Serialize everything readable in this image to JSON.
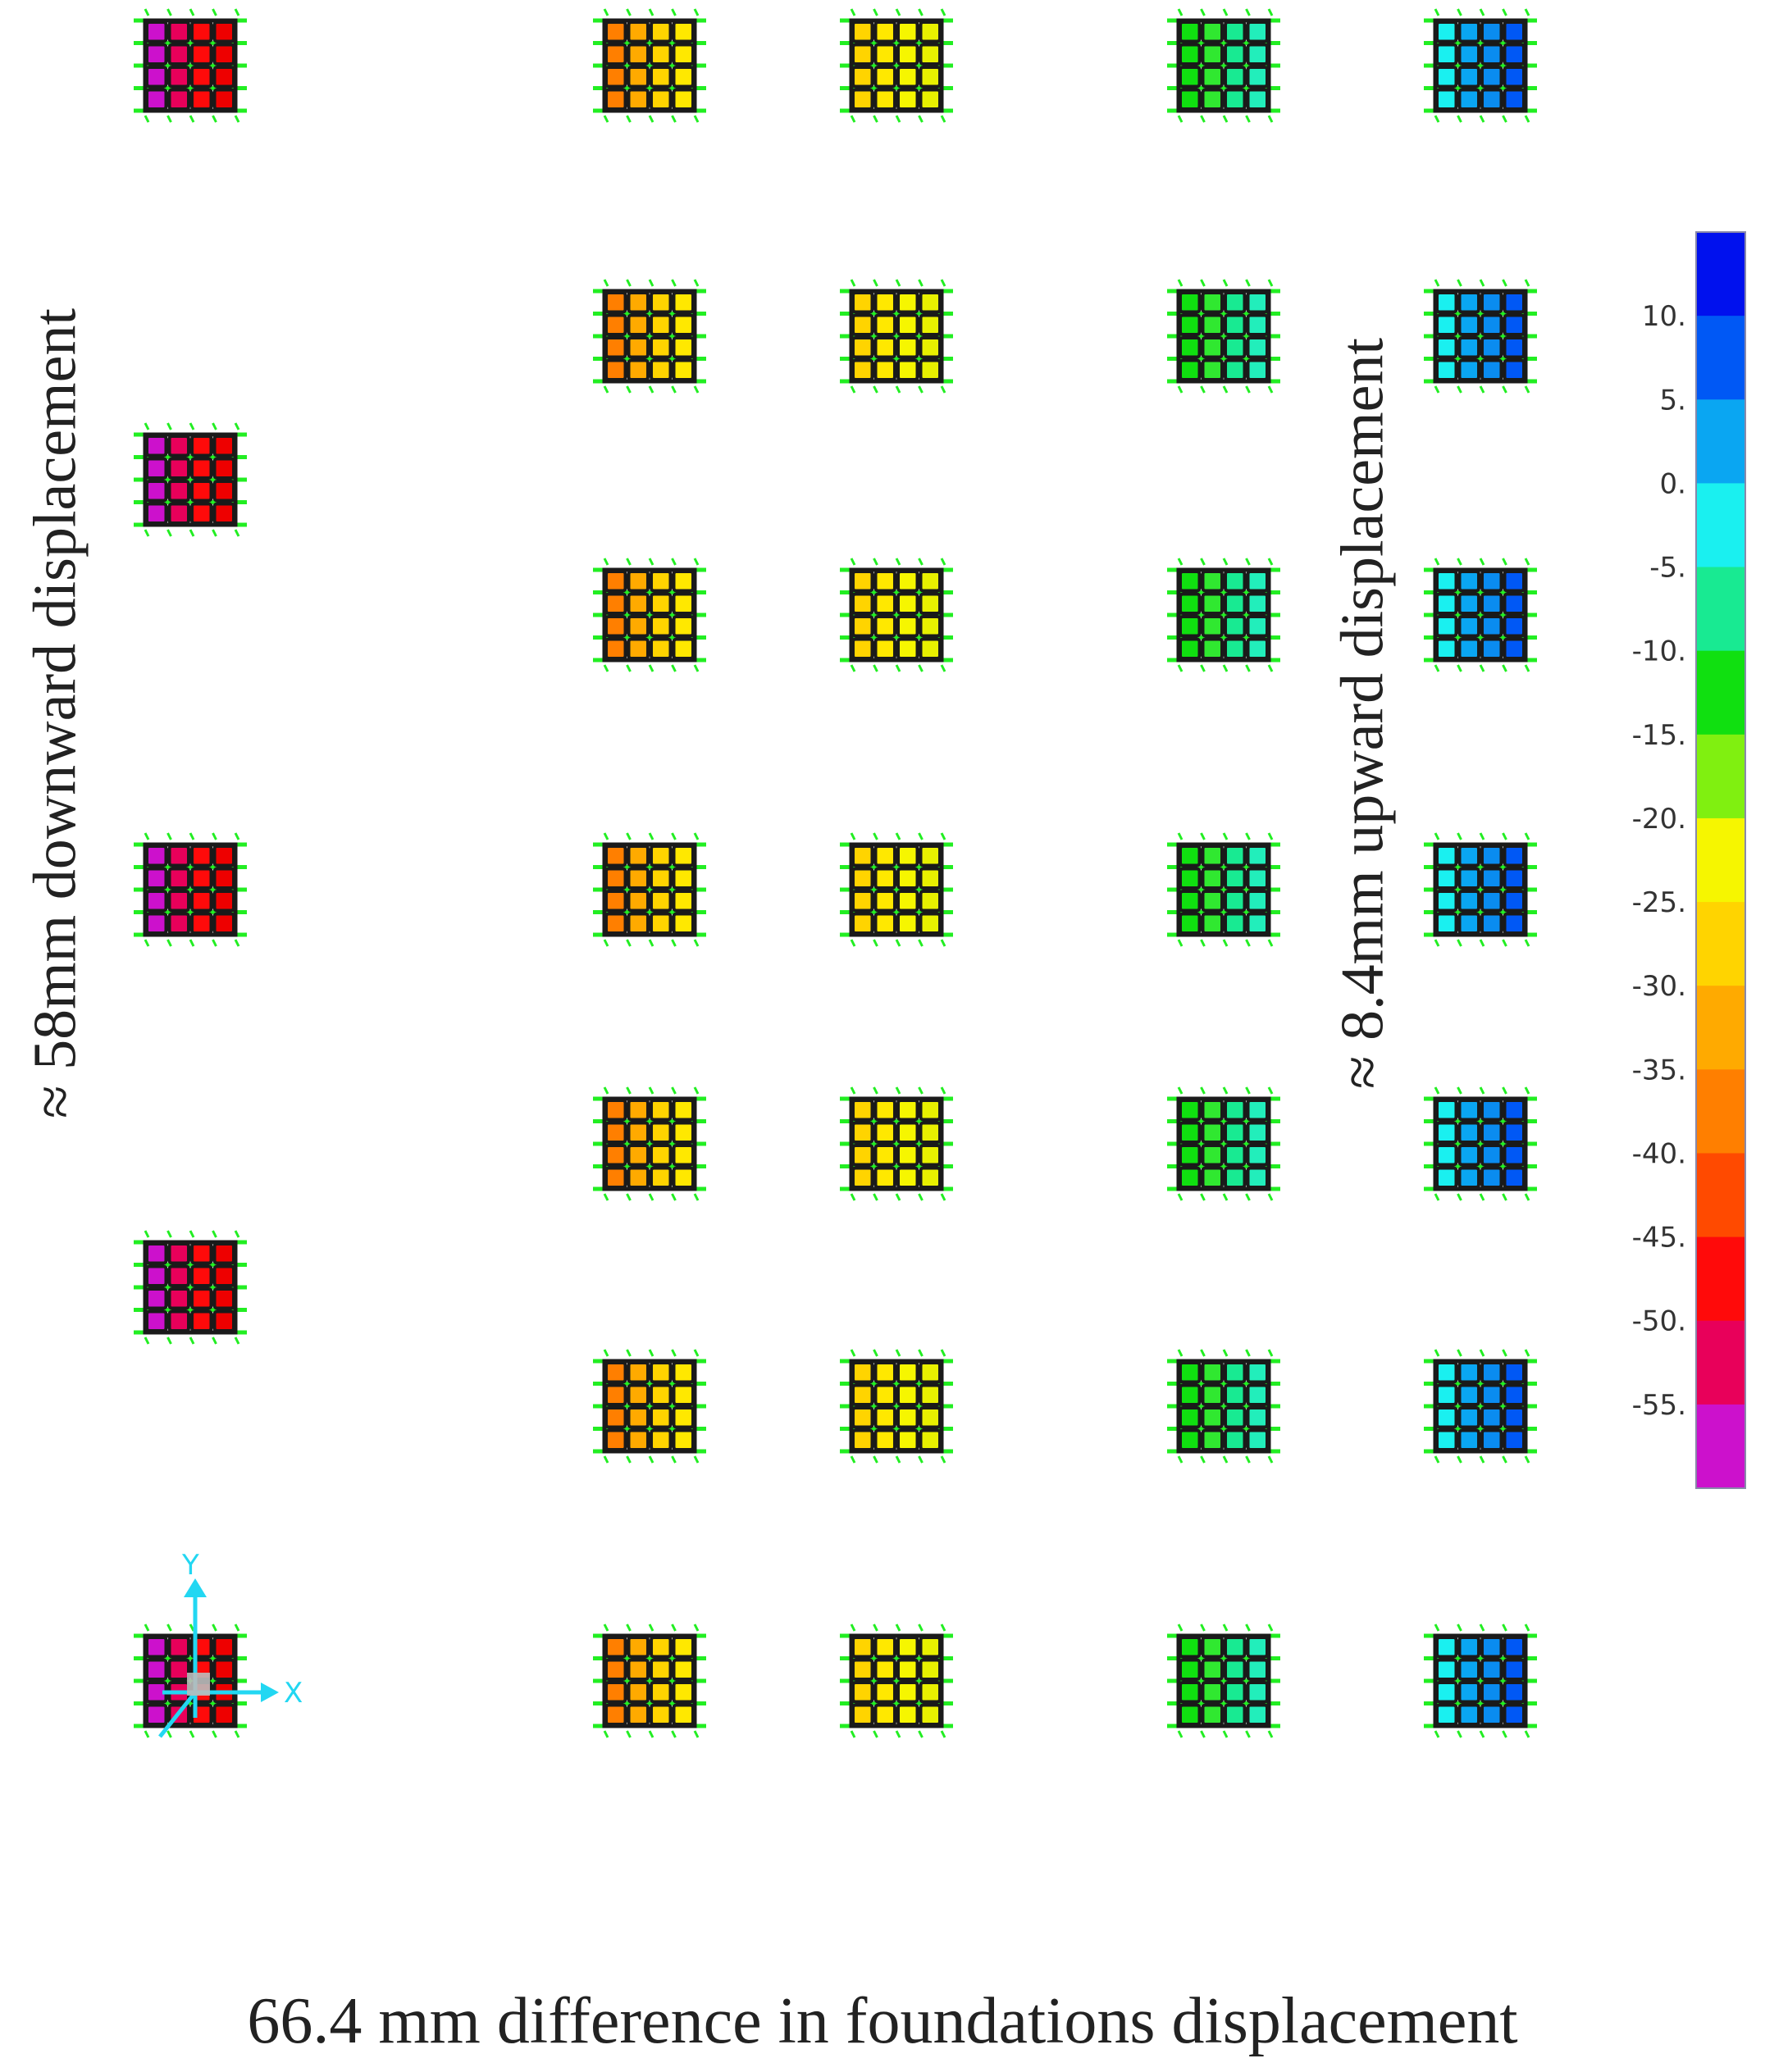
{
  "labels": {
    "left": "≈ 58mm downward displacement",
    "right": "≈ 8.4mm upward displacement",
    "caption": "66.4 mm difference in foundations displacement"
  },
  "colorbar": {
    "colors": [
      "#0011ee",
      "#0058f5",
      "#0aa6f2",
      "#1af0f0",
      "#18ea92",
      "#10e010",
      "#80f010",
      "#f6f600",
      "#ffd400",
      "#ffaa00",
      "#ff7f00",
      "#ff4a00",
      "#ff0a0a",
      "#e8005a",
      "#cc11cc"
    ],
    "tick_labels": [
      "10.",
      "5.",
      "0.",
      "-5.",
      "-10.",
      "-15.",
      "-20.",
      "-25.",
      "-30.",
      "-35.",
      "-40.",
      "-45.",
      "-50.",
      "-55."
    ]
  },
  "axes_triad": {
    "x": "X",
    "y": "Y"
  },
  "colors": {
    "pile_green": "#22ee22",
    "grid_dark": "#1a1a1a"
  },
  "foundation_columns": [
    {
      "id": "col-1",
      "palette": [
        "#cc11cc",
        "#e8005a",
        "#ff0a0a",
        "#ee0000"
      ]
    },
    {
      "id": "col-2",
      "palette": [
        "#ff7f00",
        "#ffaa00",
        "#ffd400",
        "#ffe800"
      ]
    },
    {
      "id": "col-3",
      "palette": [
        "#ffd400",
        "#ffe800",
        "#f6f600",
        "#e8f000"
      ]
    },
    {
      "id": "col-4",
      "palette": [
        "#10e010",
        "#30e830",
        "#18ea92",
        "#22eebb"
      ]
    },
    {
      "id": "col-5",
      "palette": [
        "#1af0f0",
        "#0aa6f2",
        "#0a8cf0",
        "#0058f5"
      ]
    }
  ]
}
